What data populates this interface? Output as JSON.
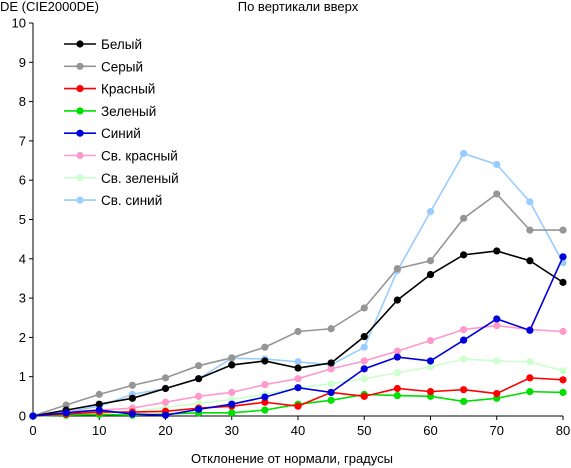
{
  "chart_data": {
    "type": "line",
    "title": "По вертикали вверх",
    "ylabel": "DE (CIE2000DE)",
    "xlabel": "Отклонение от нормали, градусы",
    "xlim": [
      0,
      80
    ],
    "ylim": [
      0,
      10
    ],
    "xticks": [
      0,
      10,
      20,
      30,
      40,
      50,
      60,
      70,
      80
    ],
    "yticks": [
      0,
      1,
      2,
      3,
      4,
      5,
      6,
      7,
      8,
      9,
      10
    ],
    "grid": false,
    "legend_position": "top-left",
    "x": [
      0,
      5,
      10,
      15,
      20,
      25,
      30,
      35,
      40,
      45,
      50,
      55,
      60,
      65,
      70,
      75,
      80
    ],
    "series": [
      {
        "name": "Белый",
        "color": "#000000",
        "values": [
          0,
          0.15,
          0.3,
          0.45,
          0.7,
          0.95,
          1.3,
          1.4,
          1.22,
          1.35,
          2.02,
          2.95,
          3.6,
          4.1,
          4.2,
          3.95,
          3.4
        ]
      },
      {
        "name": "Серый",
        "color": "#969696",
        "values": [
          0,
          0.28,
          0.55,
          0.78,
          0.97,
          1.28,
          1.48,
          1.75,
          2.15,
          2.22,
          2.75,
          3.75,
          3.95,
          5.03,
          5.65,
          4.73,
          4.73
        ]
      },
      {
        "name": "Красный",
        "color": "#ff0000",
        "values": [
          0,
          0.05,
          0.1,
          0.1,
          0.12,
          0.2,
          0.25,
          0.35,
          0.25,
          0.6,
          0.5,
          0.7,
          0.62,
          0.67,
          0.57,
          0.97,
          0.92
        ]
      },
      {
        "name": "Зеленый",
        "color": "#00e000",
        "values": [
          0,
          0.02,
          0.04,
          0.02,
          0.05,
          0.08,
          0.08,
          0.15,
          0.3,
          0.4,
          0.55,
          0.52,
          0.5,
          0.37,
          0.45,
          0.62,
          0.6
        ]
      },
      {
        "name": "Синий",
        "color": "#0000dd",
        "values": [
          0,
          0.08,
          0.15,
          0.05,
          0.02,
          0.17,
          0.3,
          0.48,
          0.72,
          0.6,
          1.2,
          1.5,
          1.4,
          1.93,
          2.47,
          2.18,
          4.05
        ]
      },
      {
        "name": "Св. красный",
        "color": "#ff99cc",
        "values": [
          0,
          0.1,
          0.15,
          0.2,
          0.35,
          0.5,
          0.6,
          0.8,
          0.95,
          1.2,
          1.4,
          1.65,
          1.92,
          2.2,
          2.3,
          2.2,
          2.15
        ]
      },
      {
        "name": "Св. зеленый",
        "color": "#ccffcc",
        "values": [
          0,
          0.05,
          0.08,
          0.1,
          0.22,
          0.32,
          0.42,
          0.55,
          0.72,
          0.82,
          0.95,
          1.1,
          1.25,
          1.45,
          1.4,
          1.38,
          1.15
        ]
      },
      {
        "name": "Св. синий",
        "color": "#99ccff",
        "values": [
          0,
          0.1,
          0.25,
          0.55,
          0.7,
          0.95,
          1.47,
          1.45,
          1.38,
          1.3,
          1.75,
          3.7,
          5.2,
          6.68,
          6.4,
          5.45,
          3.9
        ]
      }
    ]
  }
}
